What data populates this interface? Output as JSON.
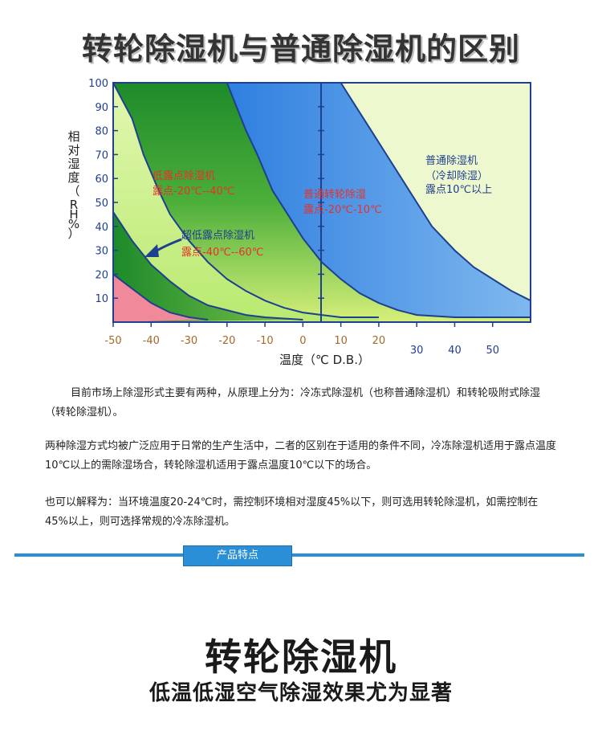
{
  "page_title": "转轮除湿机与普通除湿机的区别",
  "chart_data": {
    "type": "area",
    "title": "",
    "ylabel": "相对湿度（RH%）",
    "xlabel": "温度（℃ D.B.）",
    "xlim": [
      -50,
      60
    ],
    "ylim": [
      0,
      100
    ],
    "y_ticks": [
      10,
      20,
      30,
      40,
      50,
      60,
      70,
      80,
      90,
      100
    ],
    "x_ticks_row1": [
      -50,
      -40,
      -30,
      -20,
      -10,
      0,
      10,
      20
    ],
    "x_ticks_row2": [
      30,
      40,
      50
    ],
    "grid": false,
    "regions": [
      {
        "label": "低露点除湿机",
        "range": "露点-20℃--40℃",
        "color": "#3aa23a"
      },
      {
        "label": "超低露点除湿机",
        "range": "露点-40℃--60℃",
        "color": "#1e8a2a"
      },
      {
        "label": "普通转轮除湿",
        "range": "露点-20℃-10℃",
        "color": "#2f8fe0"
      },
      {
        "label": "普通除湿机\n（冷却除湿）",
        "range": "露点10℃以上",
        "color": "#e8f5c6"
      }
    ],
    "boundaries": [
      {
        "name": "pink",
        "points": [
          [
            -50,
            20
          ],
          [
            -45,
            14
          ],
          [
            -40,
            8
          ],
          [
            -35,
            4
          ],
          [
            -30,
            2
          ],
          [
            -25,
            1
          ]
        ]
      },
      {
        "name": "ultra-low-inner",
        "points": [
          [
            -50,
            46
          ],
          [
            -45,
            34
          ],
          [
            -40,
            24
          ],
          [
            -35,
            17
          ],
          [
            -30,
            11
          ],
          [
            -25,
            7
          ],
          [
            -20,
            5
          ],
          [
            -15,
            3
          ],
          [
            -10,
            2
          ],
          [
            -5,
            1.5
          ],
          [
            0,
            1
          ]
        ]
      },
      {
        "name": "low-dewpoint",
        "points": [
          [
            -50,
            100
          ],
          [
            -45,
            85
          ],
          [
            -42,
            70
          ],
          [
            -38,
            55
          ],
          [
            -35,
            45
          ],
          [
            -30,
            34
          ],
          [
            -25,
            25
          ],
          [
            -20,
            18
          ],
          [
            -15,
            13
          ],
          [
            -10,
            9
          ],
          [
            -5,
            6
          ],
          [
            0,
            4
          ],
          [
            5,
            3
          ],
          [
            10,
            2
          ],
          [
            15,
            2
          ],
          [
            20,
            2
          ]
        ]
      },
      {
        "name": "runner",
        "points": [
          [
            -20,
            100
          ],
          [
            -15,
            80
          ],
          [
            -12,
            70
          ],
          [
            -8,
            55
          ],
          [
            -4,
            45
          ],
          [
            0,
            35
          ],
          [
            5,
            25
          ],
          [
            10,
            18
          ],
          [
            15,
            12
          ],
          [
            20,
            8
          ],
          [
            25,
            5
          ],
          [
            30,
            3
          ],
          [
            40,
            2
          ],
          [
            50,
            2
          ],
          [
            60,
            2
          ]
        ]
      },
      {
        "name": "normal",
        "points": [
          [
            10,
            100
          ],
          [
            14,
            90
          ],
          [
            18,
            80
          ],
          [
            22,
            70
          ],
          [
            26,
            60
          ],
          [
            30,
            50
          ],
          [
            34,
            40
          ],
          [
            40,
            30
          ],
          [
            45,
            23
          ],
          [
            50,
            18
          ],
          [
            55,
            13
          ],
          [
            60,
            9
          ]
        ]
      }
    ]
  },
  "paragraphs": [
    "目前市场上除湿形式主要有两种，从原理上分为：冷冻式除湿机（也称普通除湿机）和转轮吸附式除湿（转轮除湿机）。",
    "两种除湿方式均被广泛应用于日常的生产生活中，二者的区别在于适用的条件不同，冷冻除湿机适用于露点温度10℃以上的需除湿场合，转轮除湿机适用于露点温度10℃以下的场合。",
    "也可以解释为：当环境温度20-24℃时，需控制环境相对湿度45%以下，则可选用转轮除湿机，如需控制在45%以上，则可选择常规的冷冻除湿机。"
  ],
  "section_tag": "产品特点",
  "hero_title": "转轮除湿机",
  "hero_subtitle": "低温低湿空气除湿效果尤为显著",
  "colors": {
    "accent": "#2b8fd8",
    "axis": "#1f3f8f",
    "label_red": "#e8302a",
    "label_blue": "#1f3f8f"
  }
}
